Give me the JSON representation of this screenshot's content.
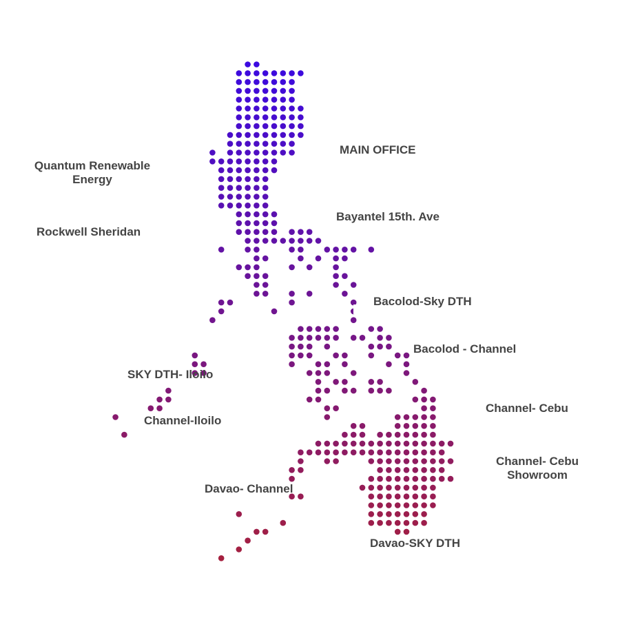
{
  "colors": {
    "top": "#3b0ae0",
    "bottom": "#a5203f",
    "label_text": "#444444"
  },
  "locations": [
    {
      "id": "main-office",
      "lines": [
        "MAIN OFFICE"
      ]
    },
    {
      "id": "quantum-renewable-energy",
      "lines": [
        "Quantum Renewable",
        "Energy"
      ]
    },
    {
      "id": "bayantel-15th-ave",
      "lines": [
        "Bayantel 15th. Ave"
      ]
    },
    {
      "id": "rockwell-sheridan",
      "lines": [
        "Rockwell Sheridan"
      ]
    },
    {
      "id": "bacolod-sky-dth",
      "lines": [
        "Bacolod-Sky DTH"
      ]
    },
    {
      "id": "bacolod-channel",
      "lines": [
        "Bacolod - Channel"
      ]
    },
    {
      "id": "sky-dth-iloilo",
      "lines": [
        "SKY DTH- Iloilo"
      ]
    },
    {
      "id": "channel-cebu",
      "lines": [
        "Channel- Cebu"
      ]
    },
    {
      "id": "channel-iloilo",
      "lines": [
        "Channel-Iloilo"
      ]
    },
    {
      "id": "channel-cebu-showroom",
      "lines": [
        "Channel- Cebu",
        "Showroom"
      ]
    },
    {
      "id": "davao-channel",
      "lines": [
        "Davao- Channel"
      ]
    },
    {
      "id": "davao-sky-dth",
      "lines": [
        "Davao-SKY DTH"
      ]
    }
  ]
}
